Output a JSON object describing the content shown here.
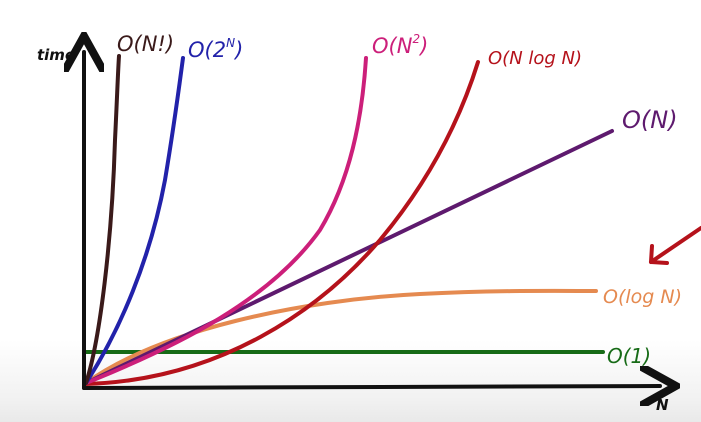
{
  "chart_data": {
    "type": "line",
    "xlabel": "N",
    "ylabel": "time",
    "grid": false,
    "legend": "inline labels at line ends",
    "series": [
      {
        "name": "O(N!)",
        "color": "#3a1a1a",
        "shape": "factorial"
      },
      {
        "name": "O(2^N)",
        "color": "#2222aa",
        "shape": "exponential"
      },
      {
        "name": "O(N²)",
        "color": "#cc1f7a",
        "shape": "quadratic"
      },
      {
        "name": "O(N log N)",
        "color": "#b5121b",
        "shape": "linearithmic"
      },
      {
        "name": "O(N)",
        "color": "#5e1a6e",
        "shape": "linear"
      },
      {
        "name": "O(log N)",
        "color": "#e58a50",
        "shape": "logarithmic"
      },
      {
        "name": "O(1)",
        "color": "#176b17",
        "shape": "constant"
      }
    ],
    "arrow_color": "#b5121b"
  },
  "labels": {
    "factorial": "O(N!)",
    "exponential_base": "O(2",
    "exponential_sup": "N",
    "exponential_close": ")",
    "quadratic_base": "O(N",
    "quadratic_sup": "2",
    "quadratic_close": ")",
    "linearithmic": "O(N log N)",
    "linear": "O(N)",
    "logarithmic": "O(log N)",
    "constant": "O(1)",
    "y_axis": "time",
    "x_axis": "N"
  }
}
